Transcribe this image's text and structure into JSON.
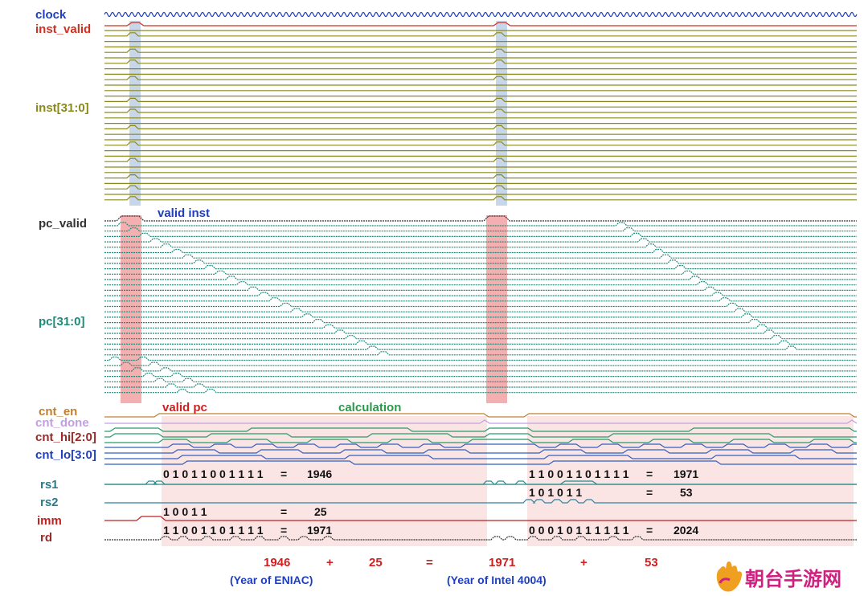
{
  "colors": {
    "clock": "#1f3fbf",
    "inst_valid": "#d03020",
    "inst": "#8a8a1a",
    "pc_valid": "#333333",
    "pc": "#1f8a7a",
    "cnt_en": "#c08030",
    "cnt_done": "#c0a0e0",
    "cnt_hi": "#2a9a6a",
    "cnt_lo": "#3060c0",
    "rs1": "#2a8a8a",
    "rs2": "#3080a0",
    "imm": "#c02020",
    "rd": "#333333",
    "highlight_blue": "#c8d6ea",
    "highlight_red": "#f4b0b0",
    "highlight_pink": "#fbe4e4",
    "foot_red": "#d02020",
    "foot_blue": "#1f3fbf",
    "logo": "#d02080"
  },
  "signals": {
    "clock": "clock",
    "inst_valid": "inst_valid",
    "inst": "inst[31:0]",
    "pc_valid": "pc_valid",
    "pc": "pc[31:0]",
    "cnt_en": "cnt_en",
    "cnt_done": "cnt_done",
    "cnt_hi": "cnt_hi[2:0]",
    "cnt_lo": "cnt_lo[3:0]",
    "rs1": "rs1",
    "rs2": "rs2",
    "imm": "imm",
    "rd": "rd"
  },
  "annotations": {
    "valid_inst": "valid inst",
    "valid_pc": "valid pc",
    "calculation": "calculation"
  },
  "values": {
    "rs1_a_bits": "0 1 0 1 1 0 0 1 1 1 1",
    "rs1_a_eq": "=",
    "rs1_a_dec": "1946",
    "imm_bits": "1 0 0 1 1",
    "imm_eq": "=",
    "imm_dec": "25",
    "rd_a_bits": "1 1 0 0 1 1 0 1 1 1 1",
    "rd_a_eq": "=",
    "rd_a_dec": "1971",
    "rs1_b_bits": "1 1 0 0 1 1 0 1 1 1 1",
    "rs1_b_eq": "=",
    "rs1_b_dec": "1971",
    "rs2_b_bits": "1 0 1 0 1 1",
    "rs2_b_eq": "=",
    "rs2_b_dec": "53",
    "rd_b_bits": "0 0 0 1 0 1 1 1 1 1 1",
    "rd_b_eq": "=",
    "rd_b_dec": "2024"
  },
  "footer": {
    "n1": "1946",
    "plus1": "+",
    "n2": "25",
    "eq": "=",
    "n3": "1971",
    "plus2": "+",
    "n4": "53",
    "eniac": "(Year of ENIAC)",
    "intel": "(Year of Intel 4004)"
  },
  "logo": {
    "text": "朝台手游网",
    "icon": "hand-icon"
  }
}
